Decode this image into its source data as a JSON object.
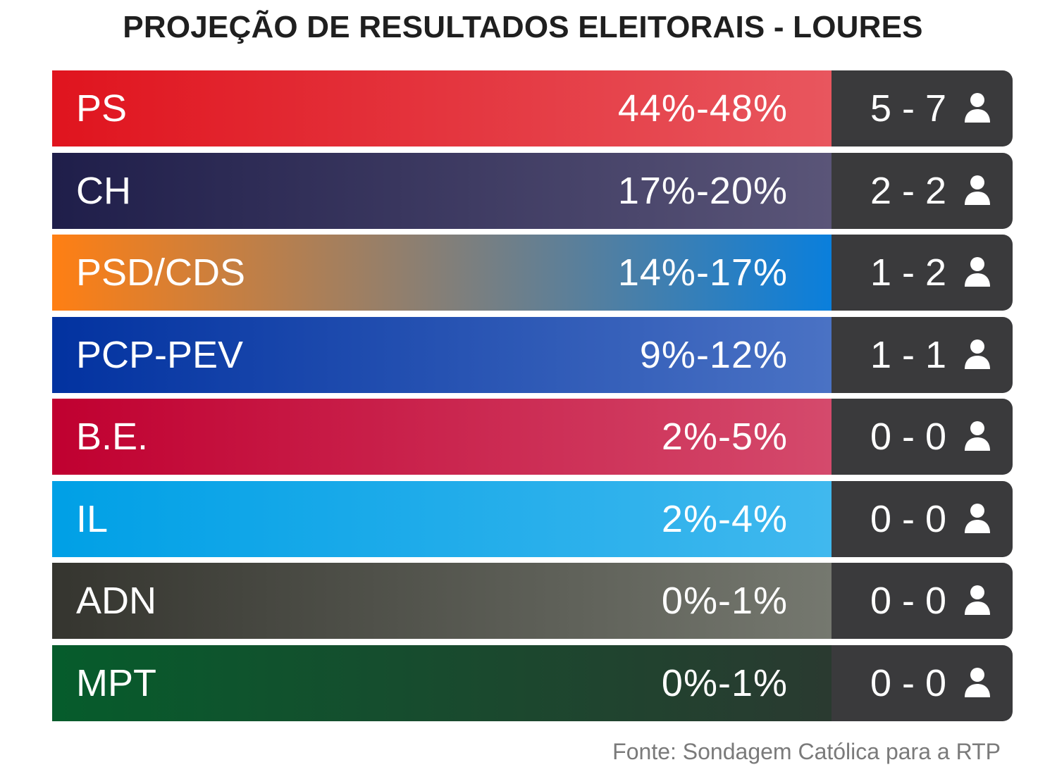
{
  "title": "PROJEÇÃO DE RESULTADOS ELEITORAIS - LOURES",
  "source": "Fonte: Sondagem Católica para a RTP",
  "icons": {
    "seat_icon": "person-icon"
  },
  "colors": {
    "seat_box": "#3a3a3c",
    "text": "#ffffff"
  },
  "chart_data": {
    "type": "table",
    "title": "PROJEÇÃO DE RESULTADOS ELEITORAIS - LOURES",
    "columns": [
      "party",
      "vote_range",
      "seats"
    ],
    "rows": [
      {
        "party": "PS",
        "vote_range": "44%-48%",
        "vote_min": 44,
        "vote_max": 48,
        "seats": "5 - 7",
        "seats_min": 5,
        "seats_max": 7,
        "color_start": "#e0141e",
        "color_end": "#e8565e"
      },
      {
        "party": "CH",
        "vote_range": "17%-20%",
        "vote_min": 17,
        "vote_max": 20,
        "seats": "2 - 2",
        "seats_min": 2,
        "seats_max": 2,
        "color_start": "#1f1e4a",
        "color_end": "#5a5578"
      },
      {
        "party": "PSD/CDS",
        "vote_range": "14%-17%",
        "vote_min": 14,
        "vote_max": 17,
        "seats": "1 - 2",
        "seats_min": 1,
        "seats_max": 2,
        "color_start": "#ff7f13",
        "color_end": "#0a7fdc"
      },
      {
        "party": "PCP-PEV",
        "vote_range": "9%-12%",
        "vote_min": 9,
        "vote_max": 12,
        "seats": "1 - 1",
        "seats_min": 1,
        "seats_max": 1,
        "color_start": "#0232a0",
        "color_end": "#4a72c4"
      },
      {
        "party": "B.E.",
        "vote_range": "2%-5%",
        "vote_min": 2,
        "vote_max": 5,
        "seats": "0 - 0",
        "seats_min": 0,
        "seats_max": 0,
        "color_start": "#c00030",
        "color_end": "#d44a6c"
      },
      {
        "party": "IL",
        "vote_range": "2%-4%",
        "vote_min": 2,
        "vote_max": 4,
        "seats": "0 - 0",
        "seats_min": 0,
        "seats_max": 0,
        "color_start": "#00a0e6",
        "color_end": "#40b8ee"
      },
      {
        "party": "ADN",
        "vote_range": "0%-1%",
        "vote_min": 0,
        "vote_max": 1,
        "seats": "0 - 0",
        "seats_min": 0,
        "seats_max": 0,
        "color_start": "#35352f",
        "color_end": "#75786f"
      },
      {
        "party": "MPT",
        "vote_range": "0%-1%",
        "vote_min": 0,
        "vote_max": 1,
        "seats": "0 - 0",
        "seats_min": 0,
        "seats_max": 0,
        "color_start": "#065c2c",
        "color_end": "#2a3a30"
      }
    ]
  }
}
